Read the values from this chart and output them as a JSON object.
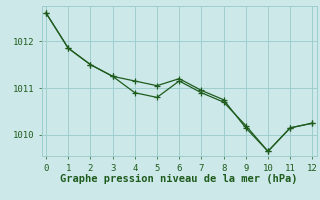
{
  "xlabel": "Graphe pression niveau de la mer (hPa)",
  "bg_color": "#cde8e8",
  "line_color": "#1e5c1e",
  "grid_color": "#9ecece",
  "xlim": [
    -0.2,
    12.2
  ],
  "ylim": [
    1009.55,
    1012.75
  ],
  "xticks": [
    0,
    1,
    2,
    3,
    4,
    5,
    6,
    7,
    8,
    9,
    10,
    11,
    12
  ],
  "yticks": [
    1010,
    1011,
    1012
  ],
  "series1_x": [
    0,
    1,
    2,
    3,
    4,
    5,
    6,
    7,
    8,
    9,
    10,
    11,
    12
  ],
  "series1_y": [
    1012.6,
    1011.85,
    1011.5,
    1011.25,
    1011.15,
    1011.05,
    1011.2,
    1010.95,
    1010.75,
    1010.15,
    1009.65,
    1010.15,
    1010.25
  ],
  "series2_x": [
    0,
    1,
    2,
    3,
    4,
    5,
    6,
    7,
    8,
    9,
    10,
    11,
    12
  ],
  "series2_y": [
    1012.6,
    1011.85,
    1011.5,
    1011.25,
    1010.9,
    1010.8,
    1011.15,
    1010.9,
    1010.7,
    1010.2,
    1009.65,
    1010.15,
    1010.25
  ],
  "marker_size": 4,
  "linewidth": 0.9,
  "xlabel_fontsize": 7.5,
  "tick_fontsize": 6.5
}
